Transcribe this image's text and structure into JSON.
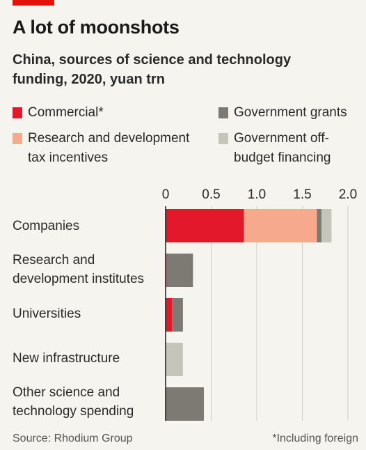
{
  "title": "A lot of moonshots",
  "subtitle": "China, sources of science and technology funding, 2020, yuan trn",
  "colors": {
    "brand_red": "#e3120b",
    "commercial": "#e3192b",
    "rd_tax": "#f7a98e",
    "gov_grants": "#7c7a73",
    "off_budget": "#c5c5bc"
  },
  "legend": [
    {
      "label": "Commercial*",
      "color": "#e3192b"
    },
    {
      "label": "Government grants",
      "color": "#7c7a73"
    },
    {
      "label": "Research and development tax incentives",
      "color": "#f7a98e"
    },
    {
      "label": "Government off-budget financing",
      "color": "#c5c5bc"
    }
  ],
  "chart_data": {
    "type": "bar",
    "orientation": "horizontal",
    "stacked": true,
    "title": "A lot of moonshots",
    "subtitle": "China, sources of science and technology funding, 2020, yuan trn",
    "categories": [
      "Companies",
      "Research and development institutes",
      "Universities",
      "New infrastructure",
      "Other science and technology spending"
    ],
    "series": [
      {
        "name": "Commercial*",
        "values": [
          0.86,
          0.01,
          0.07,
          0,
          0
        ]
      },
      {
        "name": "Research and development tax incentives",
        "values": [
          0.8,
          0,
          0,
          0,
          0
        ]
      },
      {
        "name": "Government grants",
        "values": [
          0.05,
          0.29,
          0.12,
          0,
          0.42
        ]
      },
      {
        "name": "Government off-budget financing",
        "values": [
          0.11,
          0,
          0,
          0.19,
          0
        ]
      }
    ],
    "xlim": [
      0,
      2.0
    ],
    "x_ticks": [
      "0",
      "0.5",
      "1.0",
      "1.5",
      "2.0"
    ],
    "grid": true,
    "axis_position": "top"
  },
  "footer": {
    "source": "Source: Rhodium Group",
    "note": "*Including foreign"
  }
}
